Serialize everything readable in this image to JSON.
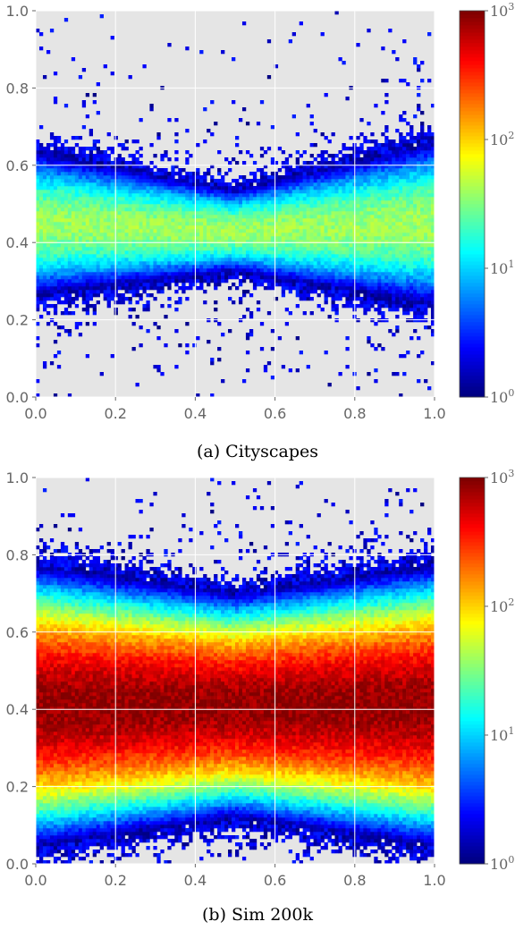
{
  "chart_data": [
    {
      "type": "heatmap",
      "caption": "(a) Cityscapes",
      "xlim": [
        0.0,
        1.0
      ],
      "ylim": [
        0.0,
        1.0
      ],
      "x_ticks": [
        "0.0",
        "0.2",
        "0.4",
        "0.6",
        "0.8",
        "1.0"
      ],
      "y_ticks": [
        "0.0",
        "0.2",
        "0.4",
        "0.6",
        "0.8",
        "1.0"
      ],
      "grid": true,
      "colorbar": {
        "scale": "log",
        "range": [
          1,
          1000
        ],
        "colormap": "jet",
        "tick_bases": [
          "10",
          "10",
          "10",
          "10"
        ],
        "tick_exponents": [
          "0",
          "1",
          "2",
          "3"
        ]
      },
      "density_profile": {
        "center_y": [
          [
            0.0,
            0.45
          ],
          [
            0.5,
            0.43
          ],
          [
            1.0,
            0.45
          ]
        ],
        "spread_y": [
          [
            0.0,
            0.07
          ],
          [
            0.5,
            0.04
          ],
          [
            1.0,
            0.08
          ]
        ],
        "peak_count": 40
      }
    },
    {
      "type": "heatmap",
      "caption": "(b) Sim 200k",
      "xlim": [
        0.0,
        1.0
      ],
      "ylim": [
        0.0,
        1.0
      ],
      "x_ticks": [
        "0.0",
        "0.2",
        "0.4",
        "0.6",
        "0.8",
        "1.0"
      ],
      "y_ticks": [
        "0.0",
        "0.2",
        "0.4",
        "0.6",
        "0.8",
        "1.0"
      ],
      "grid": true,
      "colorbar": {
        "scale": "log",
        "range": [
          1,
          1000
        ],
        "colormap": "jet",
        "tick_bases": [
          "10",
          "10",
          "10",
          "10"
        ],
        "tick_exponents": [
          "0",
          "1",
          "2",
          "3"
        ]
      },
      "density_profile": {
        "center_y": [
          [
            0.0,
            0.41
          ],
          [
            0.5,
            0.41
          ],
          [
            1.0,
            0.41
          ]
        ],
        "spread_y": [
          [
            0.0,
            0.1
          ],
          [
            0.5,
            0.08
          ],
          [
            1.0,
            0.1
          ]
        ],
        "peak_count": 900
      }
    }
  ]
}
